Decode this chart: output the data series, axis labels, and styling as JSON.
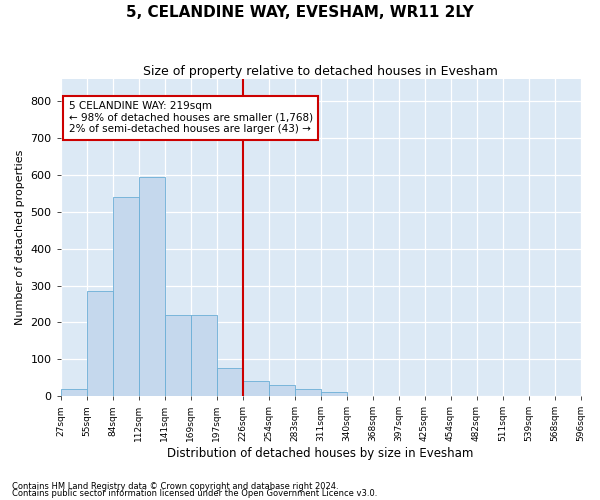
{
  "title": "5, CELANDINE WAY, EVESHAM, WR11 2LY",
  "subtitle": "Size of property relative to detached houses in Evesham",
  "xlabel": "Distribution of detached houses by size in Evesham",
  "ylabel": "Number of detached properties",
  "footnote1": "Contains HM Land Registry data © Crown copyright and database right 2024.",
  "footnote2": "Contains public sector information licensed under the Open Government Licence v3.0.",
  "bin_labels": [
    "27sqm",
    "55sqm",
    "84sqm",
    "112sqm",
    "141sqm",
    "169sqm",
    "197sqm",
    "226sqm",
    "254sqm",
    "283sqm",
    "311sqm",
    "340sqm",
    "368sqm",
    "397sqm",
    "425sqm",
    "454sqm",
    "482sqm",
    "511sqm",
    "539sqm",
    "568sqm",
    "596sqm"
  ],
  "bar_values": [
    20,
    285,
    540,
    595,
    220,
    220,
    75,
    40,
    30,
    20,
    10,
    0,
    0,
    0,
    0,
    0,
    0,
    0,
    0,
    0
  ],
  "bar_color": "#c5d8ed",
  "bar_edge_color": "#6baed6",
  "vline_x_index": 7,
  "vline_color": "#cc0000",
  "annotation_line1": "5 CELANDINE WAY: 219sqm",
  "annotation_line2": "← 98% of detached houses are smaller (1,768)",
  "annotation_line3": "2% of semi-detached houses are larger (43) →",
  "annotation_box_color": "#cc0000",
  "ylim": [
    0,
    860
  ],
  "yticks": [
    0,
    100,
    200,
    300,
    400,
    500,
    600,
    700,
    800
  ],
  "plot_background": "#dce9f5",
  "grid_color": "#ffffff",
  "fig_background": "#ffffff",
  "title_fontsize": 11,
  "subtitle_fontsize": 9
}
